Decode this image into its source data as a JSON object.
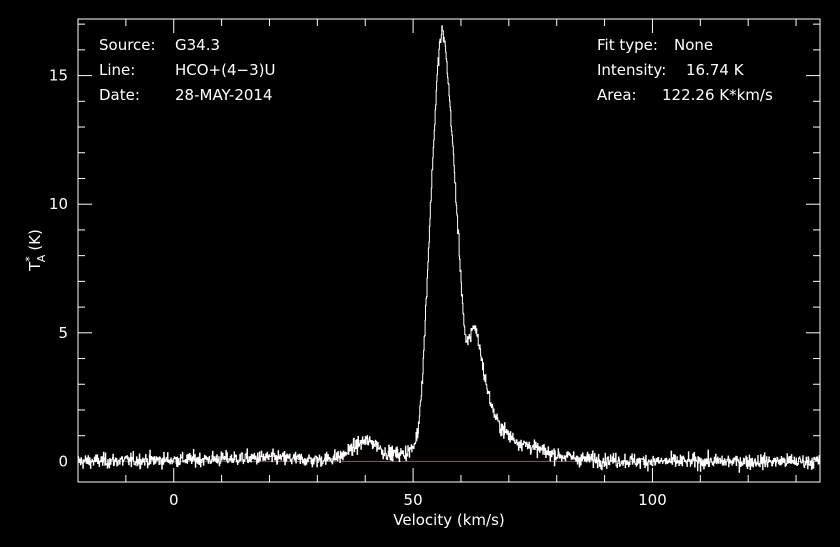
{
  "info": {
    "source_label": "Source:",
    "source_value": "G34.3",
    "line_label": "Line:",
    "line_value": "HCO+(4−3)U",
    "date_label": "Date:",
    "date_value": "28-MAY-2014",
    "fit_label": "Fit type:",
    "fit_value": "None",
    "intensity_label": "Intensity:",
    "intensity_value": "16.74 K",
    "area_label": "Area:",
    "area_value": "122.26 K*km/s"
  },
  "chart_data": {
    "type": "line",
    "xlabel": "Velocity (km/s)",
    "ylabel_main": "T",
    "ylabel_sup": "*",
    "ylabel_sub": "A",
    "ylabel_unit": "(K)",
    "xlim": [
      -20,
      135
    ],
    "ylim": [
      -0.8,
      17.2
    ],
    "x_ticks": [
      0,
      50,
      100
    ],
    "y_ticks": [
      0,
      5,
      10,
      15
    ],
    "baseline": 0,
    "colors": {
      "background": "#000000",
      "axes": "#ffffff",
      "spectrum": "#ffffff",
      "baseline": "#ff2a2a"
    },
    "noise_rms": 0.2,
    "series": [
      {
        "x": [
          -20,
          10,
          20,
          30,
          35,
          38,
          40,
          42,
          44,
          46,
          48,
          50,
          51,
          52,
          53,
          54,
          55,
          55.5,
          56,
          56.5,
          57,
          58,
          59,
          60,
          60.5,
          61,
          62,
          62.5,
          63,
          64,
          65,
          66,
          67,
          68,
          70,
          72,
          75,
          78,
          80,
          85,
          90,
          100,
          110,
          120,
          135
        ],
        "values": [
          0.0,
          0.1,
          0.15,
          0.05,
          0.2,
          0.6,
          0.8,
          0.7,
          0.35,
          0.3,
          0.3,
          0.5,
          1.2,
          3.5,
          7.5,
          11.5,
          15.0,
          16.2,
          16.7,
          16.4,
          15.5,
          13.0,
          10.0,
          7.0,
          5.6,
          4.5,
          4.9,
          5.3,
          5.2,
          4.3,
          3.2,
          2.4,
          1.8,
          1.4,
          1.0,
          0.75,
          0.55,
          0.35,
          0.25,
          0.1,
          0.05,
          0.0,
          0.0,
          0.0,
          0.0
        ]
      }
    ]
  }
}
